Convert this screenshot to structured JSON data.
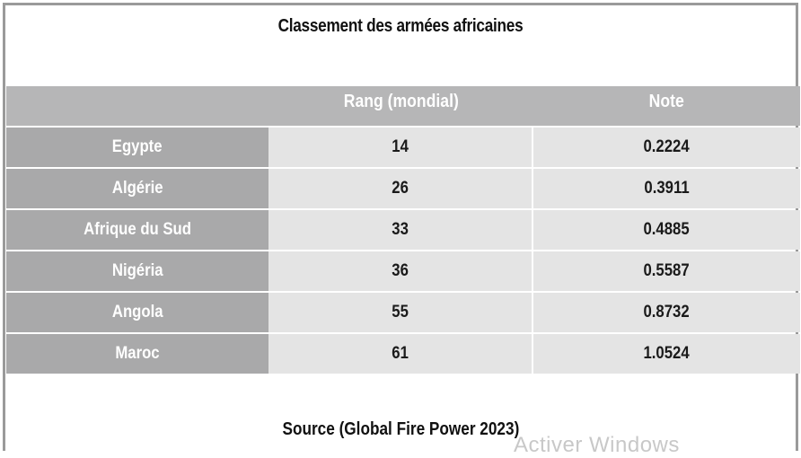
{
  "title": "Classement des armées africaines",
  "columns": [
    "",
    "Rang (mondial)",
    "Note"
  ],
  "rows": [
    {
      "country": "Egypte",
      "rank": "14",
      "score": "0.2224"
    },
    {
      "country": "Algérie",
      "rank": "26",
      "score": "0.3911"
    },
    {
      "country": "Afrique du Sud",
      "rank": "33",
      "score": "0.4885"
    },
    {
      "country": "Nigéria",
      "rank": "36",
      "score": "0.5587"
    },
    {
      "country": "Angola",
      "rank": "55",
      "score": "0.8732"
    },
    {
      "country": "Maroc",
      "rank": "61",
      "score": "1.0524"
    }
  ],
  "source": "Source (Global Fire Power 2023)",
  "watermark": "Activer Windows"
}
